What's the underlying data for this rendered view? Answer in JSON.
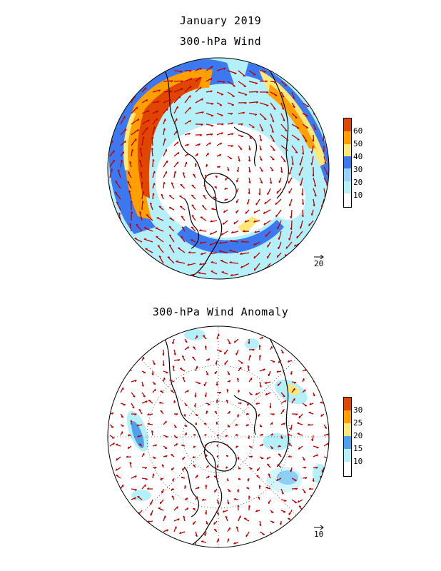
{
  "header": {
    "line1": "January 2019",
    "line2": "300-hPa Wind"
  },
  "panel_top": {
    "title": "300-hPa Wind",
    "reference_vector": "20",
    "colorbar": {
      "ticks": [
        "60",
        "50",
        "40",
        "30",
        "20",
        "10"
      ],
      "colors": [
        "#ffffff",
        "#b4f0fa",
        "#96d2fa",
        "#3c78f0",
        "#ffe878",
        "#ffa000",
        "#e14600"
      ]
    }
  },
  "panel_bottom": {
    "title": "300-hPa Wind Anomaly",
    "reference_vector": "10",
    "colorbar": {
      "ticks": [
        "30",
        "25",
        "20",
        "15",
        "10"
      ],
      "colors": [
        "#ffffff",
        "#b4f0fa",
        "#50a0f0",
        "#ffe878",
        "#ffa000",
        "#e14600"
      ]
    }
  },
  "style": {
    "vector_color": "#c00000",
    "coast_color": "#000000"
  }
}
